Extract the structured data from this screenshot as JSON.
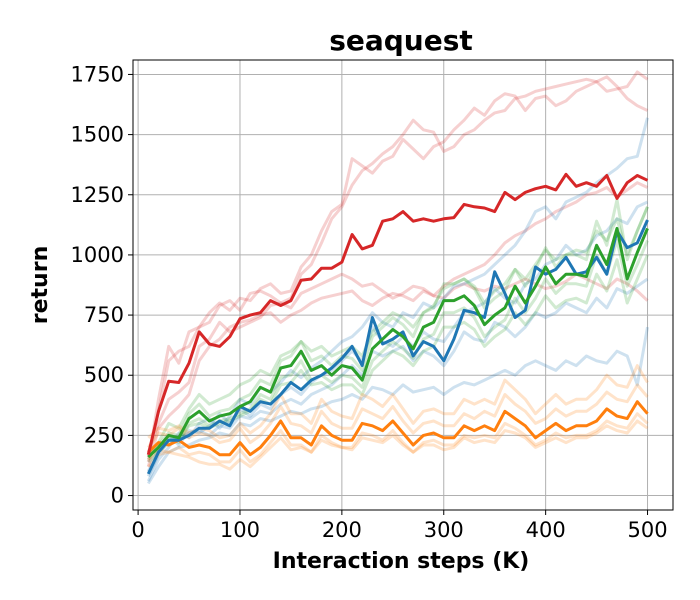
{
  "chart_data": {
    "type": "line",
    "title": "seaquest",
    "xlabel": "Interaction steps (K)",
    "ylabel": "return",
    "xlim": [
      -5,
      525
    ],
    "ylim": [
      -60,
      1810
    ],
    "xticks": [
      0,
      100,
      200,
      300,
      400,
      500
    ],
    "yticks": [
      0,
      250,
      500,
      750,
      1000,
      1250,
      1500,
      1750
    ],
    "grid": true,
    "legend": "none",
    "x": [
      10,
      20,
      30,
      40,
      50,
      60,
      70,
      80,
      90,
      100,
      110,
      120,
      130,
      140,
      150,
      160,
      170,
      180,
      190,
      200,
      210,
      220,
      230,
      240,
      250,
      260,
      270,
      280,
      290,
      300,
      310,
      320,
      330,
      340,
      350,
      360,
      370,
      380,
      390,
      400,
      410,
      420,
      430,
      440,
      450,
      460,
      470,
      480,
      490,
      500
    ],
    "series": [
      {
        "color": "#d62728",
        "mean": [
          170,
          350,
          475,
          470,
          550,
          680,
          630,
          620,
          660,
          735,
          750,
          760,
          810,
          790,
          810,
          895,
          900,
          945,
          945,
          970,
          1085,
          1025,
          1040,
          1140,
          1150,
          1180,
          1140,
          1150,
          1140,
          1150,
          1155,
          1210,
          1200,
          1195,
          1180,
          1260,
          1230,
          1260,
          1275,
          1285,
          1270,
          1335,
          1285,
          1300,
          1285,
          1330,
          1235,
          1300,
          1330,
          1310
        ],
        "runs": [
          [
            140,
            400,
            620,
            550,
            680,
            700,
            720,
            790,
            810,
            770,
            840,
            850,
            830,
            800,
            820,
            920,
            960,
            1050,
            1150,
            1200,
            1290,
            1350,
            1380,
            1420,
            1450,
            1500,
            1560,
            1520,
            1510,
            1430,
            1450,
            1500,
            1520,
            1560,
            1590,
            1600,
            1650,
            1660,
            1680,
            1690,
            1700,
            1710,
            1720,
            1730,
            1720,
            1680,
            1690,
            1700,
            1760,
            1730
          ],
          [
            160,
            350,
            560,
            600,
            620,
            700,
            760,
            800,
            770,
            820,
            810,
            860,
            880,
            840,
            850,
            950,
            1000,
            1100,
            1180,
            1210,
            1400,
            1370,
            1340,
            1390,
            1410,
            1480,
            1440,
            1400,
            1450,
            1470,
            1520,
            1560,
            1610,
            1580,
            1640,
            1670,
            1660,
            1600,
            1650,
            1660,
            1620,
            1640,
            1680,
            1700,
            1720,
            1740,
            1700,
            1650,
            1620,
            1600
          ],
          [
            180,
            300,
            400,
            430,
            470,
            620,
            650,
            720,
            680,
            700,
            720,
            740,
            790,
            800,
            780,
            840,
            860,
            880,
            900,
            920,
            900,
            870,
            880,
            850,
            820,
            840,
            870,
            860,
            830,
            820,
            860,
            880,
            860,
            850,
            870,
            860,
            880,
            900,
            880,
            860,
            870,
            890,
            920,
            900,
            880,
            860,
            900,
            880,
            850,
            810
          ],
          [
            120,
            280,
            330,
            370,
            420,
            560,
            620,
            650,
            700,
            720,
            730,
            750,
            760,
            720,
            750,
            770,
            800,
            820,
            830,
            840,
            850,
            810,
            790,
            820,
            840,
            830,
            810,
            850,
            830,
            870,
            900,
            920,
            940,
            960,
            1000,
            1050,
            1080,
            1100,
            1130,
            1150,
            1180,
            1200,
            1220,
            1250,
            1260,
            1280,
            1240,
            1270,
            1300,
            1280
          ]
        ]
      },
      {
        "color": "#1f77b4",
        "mean": [
          90,
          180,
          230,
          230,
          250,
          280,
          280,
          310,
          290,
          370,
          350,
          390,
          380,
          420,
          470,
          440,
          480,
          500,
          530,
          570,
          620,
          540,
          740,
          630,
          650,
          680,
          580,
          640,
          620,
          560,
          650,
          770,
          760,
          740,
          930,
          840,
          740,
          770,
          950,
          920,
          940,
          990,
          920,
          930,
          990,
          920,
          1100,
          1030,
          1050,
          1145
        ],
        "runs": [
          [
            60,
            150,
            200,
            260,
            240,
            300,
            320,
            280,
            330,
            400,
            380,
            450,
            430,
            470,
            520,
            490,
            530,
            560,
            600,
            640,
            660,
            700,
            760,
            720,
            700,
            760,
            740,
            800,
            780,
            820,
            870,
            880,
            900,
            920,
            960,
            1000,
            1040,
            1100,
            1180,
            1200,
            1150,
            1220,
            1240,
            1260,
            1300,
            1330,
            1360,
            1400,
            1410,
            1570
          ],
          [
            100,
            200,
            250,
            210,
            270,
            260,
            290,
            340,
            300,
            360,
            330,
            380,
            360,
            420,
            450,
            420,
            470,
            500,
            520,
            560,
            600,
            560,
            700,
            640,
            620,
            660,
            620,
            680,
            650,
            640,
            700,
            760,
            780,
            800,
            860,
            820,
            800,
            880,
            900,
            960,
            980,
            1040,
            1000,
            1020,
            1080,
            1100,
            1150,
            1130,
            1200,
            1220
          ],
          [
            80,
            170,
            230,
            240,
            260,
            270,
            250,
            290,
            280,
            330,
            320,
            350,
            340,
            380,
            400,
            380,
            420,
            440,
            460,
            500,
            540,
            500,
            600,
            580,
            600,
            620,
            560,
            600,
            580,
            540,
            600,
            680,
            650,
            640,
            720,
            700,
            660,
            700,
            760,
            740,
            760,
            800,
            780,
            760,
            820,
            780,
            860,
            840,
            870,
            900
          ],
          [
            50,
            120,
            180,
            200,
            210,
            230,
            240,
            260,
            250,
            300,
            290,
            320,
            310,
            330,
            350,
            340,
            360,
            370,
            390,
            400,
            420,
            400,
            450,
            440,
            420,
            460,
            430,
            440,
            450,
            420,
            450,
            470,
            460,
            480,
            500,
            520,
            500,
            540,
            560,
            540,
            520,
            560,
            540,
            580,
            560,
            550,
            600,
            580,
            460,
            700
          ]
        ]
      },
      {
        "color": "#2ca02c",
        "mean": [
          160,
          200,
          250,
          240,
          320,
          350,
          310,
          330,
          340,
          370,
          390,
          450,
          430,
          530,
          540,
          600,
          520,
          540,
          500,
          540,
          530,
          480,
          610,
          650,
          690,
          660,
          610,
          700,
          720,
          810,
          810,
          830,
          790,
          710,
          750,
          780,
          870,
          800,
          870,
          950,
          880,
          920,
          920,
          910,
          1040,
          960,
          1110,
          900,
          1010,
          1110
        ],
        "runs": [
          [
            150,
            220,
            300,
            280,
            360,
            420,
            380,
            400,
            420,
            460,
            480,
            520,
            500,
            580,
            600,
            640,
            600,
            620,
            580,
            600,
            620,
            580,
            680,
            720,
            760,
            740,
            700,
            760,
            790,
            860,
            880,
            900,
            870,
            800,
            850,
            880,
            940,
            900,
            960,
            1020,
            980,
            1000,
            1020,
            1010,
            1100,
            1060,
            1150,
            1000,
            1100,
            1200
          ],
          [
            170,
            190,
            240,
            220,
            300,
            320,
            290,
            310,
            320,
            340,
            360,
            420,
            400,
            490,
            500,
            560,
            480,
            500,
            470,
            500,
            490,
            450,
            560,
            600,
            640,
            610,
            570,
            650,
            670,
            760,
            760,
            780,
            740,
            660,
            700,
            730,
            820,
            760,
            820,
            900,
            840,
            880,
            880,
            870,
            1000,
            920,
            1060,
            870,
            960,
            1060
          ],
          [
            140,
            180,
            220,
            230,
            290,
            300,
            280,
            300,
            310,
            330,
            350,
            400,
            380,
            460,
            470,
            520,
            460,
            470,
            440,
            460,
            460,
            420,
            520,
            560,
            600,
            580,
            540,
            600,
            620,
            700,
            700,
            720,
            690,
            620,
            660,
            690,
            760,
            710,
            760,
            830,
            780,
            810,
            820,
            800,
            920,
            850,
            980,
            800,
            900,
            1000
          ],
          [
            180,
            210,
            260,
            250,
            340,
            380,
            330,
            350,
            360,
            400,
            420,
            480,
            460,
            560,
            580,
            640,
            560,
            580,
            540,
            580,
            570,
            520,
            660,
            700,
            740,
            710,
            660,
            760,
            780,
            880,
            880,
            900,
            860,
            780,
            820,
            850,
            940,
            870,
            940,
            1030,
            950,
            1000,
            1000,
            980,
            1140,
            1040,
            1230,
            980,
            1100,
            1200
          ]
        ]
      },
      {
        "color": "#ff7f0e",
        "mean": [
          180,
          220,
          210,
          230,
          200,
          210,
          200,
          170,
          170,
          220,
          170,
          200,
          250,
          310,
          240,
          240,
          210,
          290,
          250,
          230,
          230,
          300,
          290,
          270,
          310,
          260,
          210,
          250,
          260,
          240,
          240,
          290,
          270,
          290,
          270,
          350,
          320,
          290,
          240,
          270,
          300,
          270,
          290,
          290,
          310,
          360,
          330,
          320,
          390,
          340
        ],
        "runs": [
          [
            120,
            170,
            180,
            170,
            160,
            140,
            130,
            130,
            110,
            150,
            120,
            160,
            200,
            240,
            190,
            200,
            180,
            230,
            210,
            200,
            190,
            240,
            230,
            220,
            250,
            210,
            180,
            210,
            210,
            190,
            200,
            240,
            220,
            230,
            220,
            270,
            260,
            240,
            200,
            220,
            240,
            220,
            240,
            240,
            260,
            290,
            270,
            260,
            310,
            280
          ],
          [
            200,
            260,
            250,
            280,
            240,
            260,
            250,
            220,
            230,
            280,
            220,
            250,
            300,
            370,
            300,
            290,
            260,
            350,
            300,
            280,
            280,
            360,
            340,
            320,
            370,
            310,
            260,
            300,
            310,
            290,
            290,
            340,
            320,
            350,
            330,
            420,
            380,
            350,
            300,
            320,
            360,
            330,
            350,
            350,
            380,
            430,
            400,
            390,
            460,
            410
          ],
          [
            150,
            190,
            180,
            200,
            170,
            180,
            170,
            140,
            140,
            190,
            140,
            170,
            220,
            270,
            210,
            210,
            180,
            250,
            220,
            200,
            200,
            260,
            250,
            230,
            270,
            220,
            180,
            220,
            230,
            210,
            210,
            250,
            240,
            250,
            240,
            300,
            280,
            250,
            210,
            230,
            260,
            240,
            250,
            250,
            270,
            310,
            290,
            280,
            340,
            300
          ],
          [
            240,
            280,
            270,
            290,
            260,
            280,
            270,
            240,
            250,
            300,
            260,
            290,
            340,
            420,
            340,
            340,
            300,
            400,
            350,
            330,
            320,
            420,
            400,
            370,
            420,
            360,
            300,
            350,
            360,
            340,
            340,
            400,
            380,
            400,
            380,
            480,
            440,
            400,
            340,
            380,
            420,
            380,
            400,
            400,
            440,
            500,
            460,
            450,
            540,
            470
          ]
        ]
      }
    ]
  }
}
